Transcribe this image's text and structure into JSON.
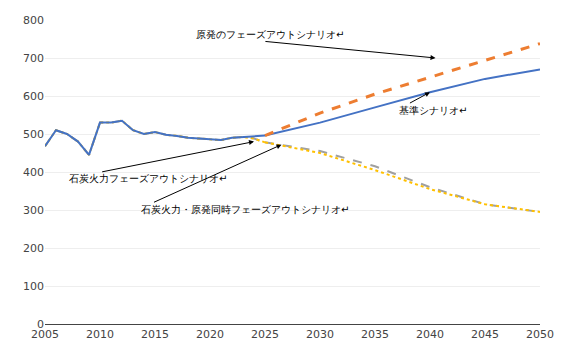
{
  "chart_data": {
    "type": "line",
    "series": [
      {
        "color": "#A0A0A0",
        "line_style": "dashed",
        "x": [
          2005,
          2006,
          2007,
          2008,
          2009,
          2010,
          2011,
          2012,
          2013,
          2014,
          2015,
          2016,
          2017,
          2018,
          2019,
          2020,
          2021,
          2022,
          2023,
          2024,
          2025
        ],
        "values": [
          468,
          510,
          500,
          480,
          445,
          530,
          530,
          535,
          510,
          500,
          505,
          498,
          495,
          490,
          488,
          486,
          484,
          490,
          492,
          488,
          478
        ]
      },
      {
        "color": "#A0A0A0",
        "line_style": "dashed",
        "x": [
          2025,
          2030,
          2035,
          2040,
          2045,
          2050
        ],
        "values": [
          478,
          455,
          415,
          360,
          315,
          295
        ]
      },
      {
        "color": "#FFC000",
        "line_style": "dotted",
        "x": [
          2005,
          2006,
          2007,
          2008,
          2009,
          2010,
          2011,
          2012,
          2013,
          2014,
          2015,
          2016,
          2017,
          2018,
          2019,
          2020,
          2021,
          2022,
          2023,
          2024,
          2025
        ],
        "values": [
          468,
          510,
          500,
          480,
          445,
          530,
          530,
          535,
          510,
          500,
          505,
          498,
          495,
          490,
          488,
          486,
          484,
          490,
          492,
          488,
          478
        ]
      },
      {
        "color": "#FFC000",
        "line_style": "dotted",
        "x": [
          2025,
          2030,
          2035,
          2040,
          2045,
          2050
        ],
        "values": [
          478,
          450,
          405,
          355,
          315,
          295
        ]
      },
      {
        "color": "#4472C4",
        "line_style": "solid",
        "x": [
          2005,
          2006,
          2007,
          2008,
          2009,
          2010,
          2011,
          2012,
          2013,
          2014,
          2015,
          2016,
          2017,
          2018,
          2019,
          2020,
          2021,
          2022,
          2023,
          2024,
          2025
        ],
        "values": [
          468,
          510,
          500,
          480,
          445,
          530,
          530,
          535,
          510,
          500,
          505,
          498,
          495,
          490,
          488,
          486,
          484,
          490,
          492,
          494,
          496
        ]
      },
      {
        "color": "#4472C4",
        "line_style": "solid",
        "x": [
          2025,
          2030,
          2035,
          2040,
          2045,
          2050
        ],
        "values": [
          496,
          530,
          570,
          610,
          645,
          670
        ]
      },
      {
        "color": "#ED7D31",
        "line_style": "dashed",
        "x": [
          2025,
          2030,
          2035,
          2040,
          2045,
          2050
        ],
        "values": [
          496,
          555,
          605,
          650,
          695,
          738
        ]
      }
    ],
    "xlim": [
      2005,
      2050
    ],
    "xticks": [
      2005,
      2010,
      2015,
      2020,
      2025,
      2030,
      2035,
      2040,
      2045,
      2050
    ],
    "ylim": [
      0,
      800
    ],
    "yticks": [
      0,
      100,
      200,
      300,
      400,
      500,
      600,
      700,
      800
    ],
    "grid": "y",
    "annotations": [
      {
        "text": "原発のフェーズアウトシナリオ↵",
        "x": 2040.5,
        "y": 700,
        "text_x": 2018.5,
        "text_y": 762
      },
      {
        "text": "基準シナリオ↵",
        "x": 2040,
        "y": 610,
        "text_x": 2037,
        "text_y": 563
      },
      {
        "text": "石炭火力フェーズアウトシナリオ↵",
        "x": 2024,
        "y": 480,
        "text_x": 2007,
        "text_y": 382
      },
      {
        "text": "石炭火力・原発同時フェーズアウトシナリオ↵",
        "x": 2026.5,
        "y": 472,
        "text_x": 2013.5,
        "text_y": 302
      }
    ]
  }
}
